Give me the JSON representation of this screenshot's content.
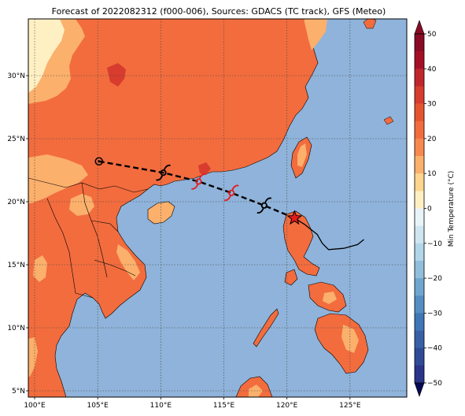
{
  "title": "Forecast of 2022082312 (f000-006), Sources: GDACS (TC track), GFS (Meteo)",
  "map": {
    "lon_ticks": [
      "100°E",
      "105°E",
      "110°E",
      "115°E",
      "120°E",
      "125°E"
    ],
    "lat_ticks": [
      "5°N",
      "10°N",
      "15°N",
      "20°N",
      "25°N",
      "30°N"
    ],
    "lon_range": [
      99.5,
      129.5
    ],
    "lat_range": [
      4.5,
      34.5
    ],
    "grid": "dotted",
    "ocean_color": "#8fb3da"
  },
  "track": {
    "forecast_points": [
      {
        "lon": 105.1,
        "lat": 23.2,
        "symbol": "circle"
      },
      {
        "lon": 110.2,
        "lat": 22.3,
        "symbol": "tc-black"
      },
      {
        "lon": 113.0,
        "lat": 21.6,
        "symbol": "tc-red"
      },
      {
        "lon": 115.6,
        "lat": 20.7,
        "symbol": "tc-red"
      },
      {
        "lon": 118.2,
        "lat": 19.7,
        "symbol": "tc-black"
      },
      {
        "lon": 120.6,
        "lat": 18.7,
        "symbol": "star"
      }
    ],
    "past_track": [
      [
        120.6,
        18.7
      ],
      [
        121.4,
        18.2
      ],
      [
        122.4,
        17.4
      ],
      [
        122.8,
        16.7
      ],
      [
        123.3,
        16.2
      ],
      [
        124.5,
        16.3
      ],
      [
        125.6,
        16.6
      ],
      [
        126.1,
        17.0
      ]
    ]
  },
  "colorbar": {
    "label": "Min Temperature (°C)",
    "ticks": [
      "50",
      "40",
      "30",
      "20",
      "10",
      "0",
      "−10",
      "−20",
      "−30",
      "−40",
      "−50"
    ],
    "colors": [
      "#67001f",
      "#b2182b",
      "#d6604d",
      "#f4a582",
      "#fddbc7",
      "#f7f7f7",
      "#d1e5f0",
      "#92c5de",
      "#4393c3",
      "#2166ac",
      "#053061"
    ],
    "bands": [
      {
        "from": 50,
        "to": 45,
        "color": "#8a0b25"
      },
      {
        "from": 45,
        "to": 40,
        "color": "#a50f26"
      },
      {
        "from": 40,
        "to": 35,
        "color": "#c0272d"
      },
      {
        "from": 35,
        "to": 30,
        "color": "#d73c2e"
      },
      {
        "from": 30,
        "to": 25,
        "color": "#e4552f"
      },
      {
        "from": 25,
        "to": 20,
        "color": "#f26c3e"
      },
      {
        "from": 20,
        "to": 15,
        "color": "#f7894f"
      },
      {
        "from": 15,
        "to": 10,
        "color": "#fbb06c"
      },
      {
        "from": 10,
        "to": 5,
        "color": "#fed58e"
      },
      {
        "from": 5,
        "to": 0,
        "color": "#fff0c4"
      },
      {
        "from": 0,
        "to": -5,
        "color": "#e9f4f9"
      },
      {
        "from": -5,
        "to": -10,
        "color": "#cfe6f1"
      },
      {
        "from": -10,
        "to": -15,
        "color": "#b2d5e8"
      },
      {
        "from": -15,
        "to": -20,
        "color": "#91bedb"
      },
      {
        "from": -20,
        "to": -25,
        "color": "#6fa6cf"
      },
      {
        "from": -25,
        "to": -30,
        "color": "#538ec2"
      },
      {
        "from": -30,
        "to": -35,
        "color": "#3f76b5"
      },
      {
        "from": -35,
        "to": -40,
        "color": "#3960a6"
      },
      {
        "from": -40,
        "to": -45,
        "color": "#2f4a97"
      },
      {
        "from": -45,
        "to": -50,
        "color": "#2a348a"
      }
    ]
  }
}
